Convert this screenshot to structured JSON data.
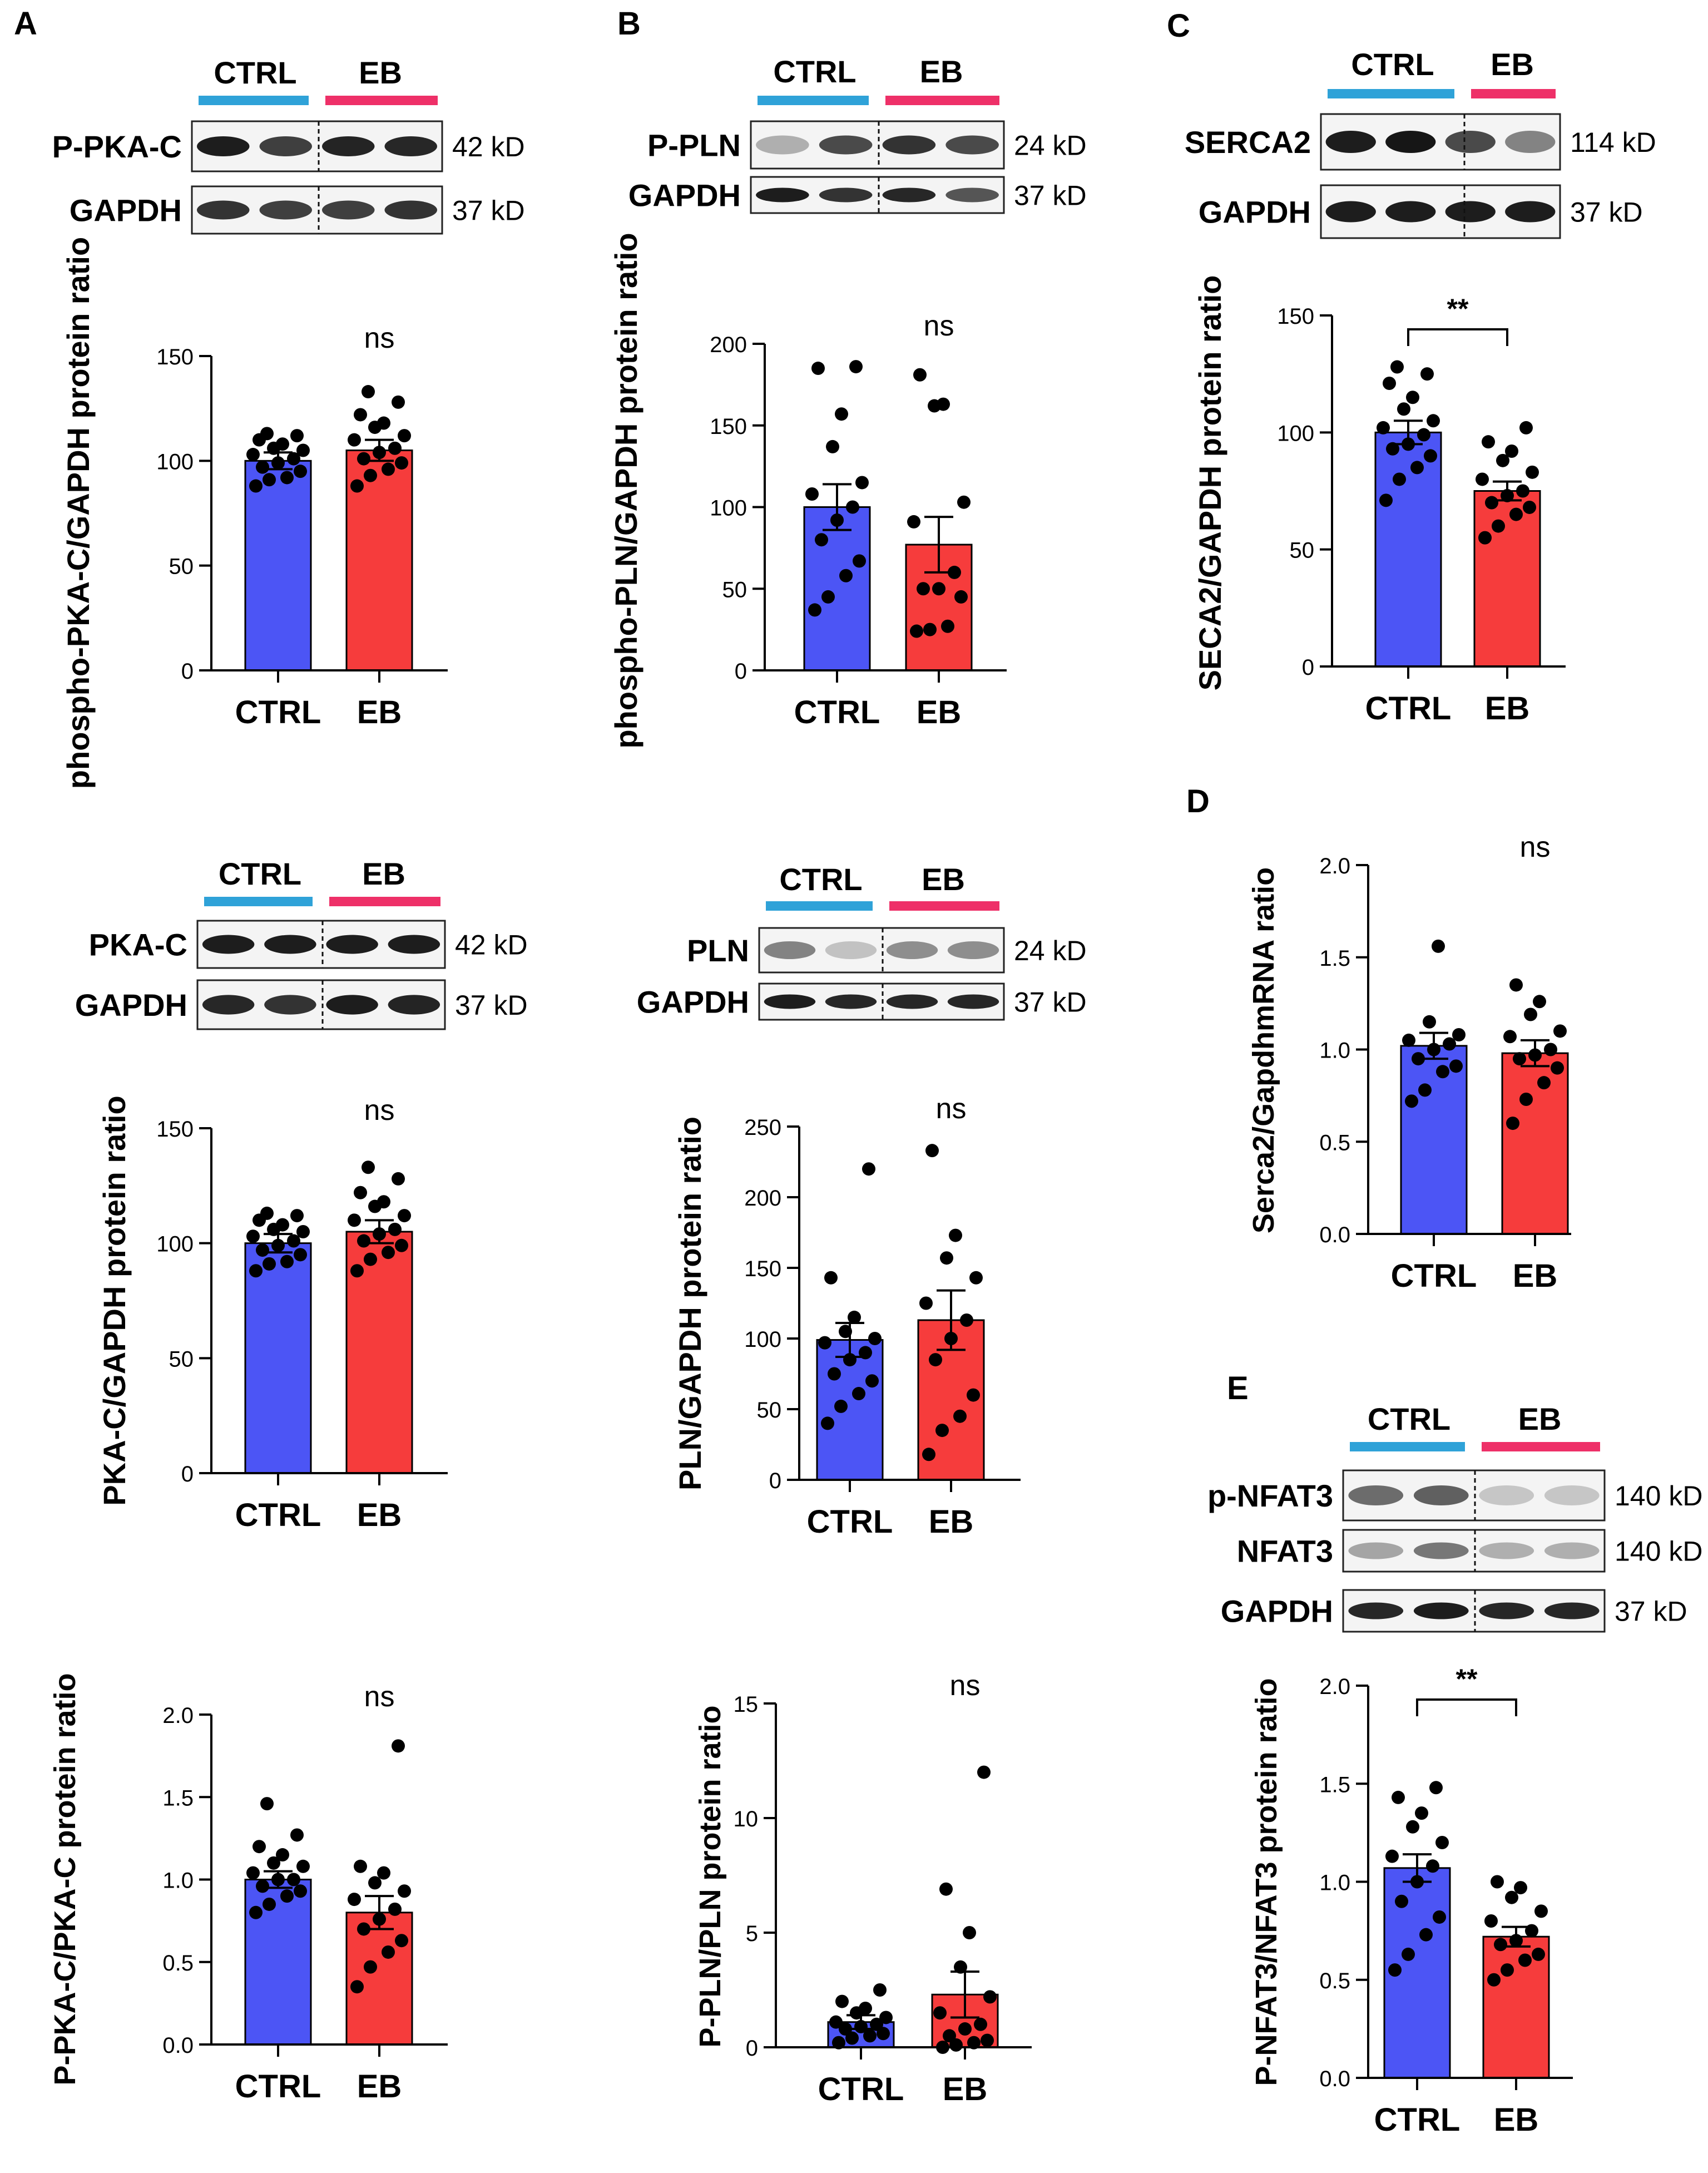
{
  "colors": {
    "ctrl_bar": "#4c55f5",
    "eb_bar": "#f63c3c",
    "ctrl_line": "#2fa2d8",
    "eb_line": "#ee3068",
    "dot": "#000000",
    "axis": "#000000"
  },
  "panel_labels": {
    "a": "A",
    "b": "B",
    "c": "C",
    "d": "D",
    "e": "E"
  },
  "group_labels": {
    "ctrl": "CTRL",
    "eb": "EB"
  },
  "blots": [
    {
      "id": "a1",
      "rows": [
        {
          "label": "P-PKA-C",
          "kd": "42 kD"
        },
        {
          "label": "GAPDH",
          "kd": "37 kD"
        }
      ]
    },
    {
      "id": "a2",
      "rows": [
        {
          "label": "PKA-C",
          "kd": "42 kD"
        },
        {
          "label": "GAPDH",
          "kd": "37 kD"
        }
      ]
    },
    {
      "id": "b1",
      "rows": [
        {
          "label": "P-PLN",
          "kd": "24 kD"
        },
        {
          "label": "GAPDH",
          "kd": "37 kD"
        }
      ]
    },
    {
      "id": "b2",
      "rows": [
        {
          "label": "PLN",
          "kd": "24 kD"
        },
        {
          "label": "GAPDH",
          "kd": "37 kD"
        }
      ]
    },
    {
      "id": "c1",
      "rows": [
        {
          "label": "SERCA2",
          "kd": "114 kD"
        },
        {
          "label": "GAPDH",
          "kd": "37 kD"
        }
      ]
    },
    {
      "id": "e1",
      "rows": [
        {
          "label": "p-NFAT3",
          "kd": "140 kD"
        },
        {
          "label": "NFAT3",
          "kd": "140 kD"
        },
        {
          "label": "GAPDH",
          "kd": "37 kD"
        }
      ]
    }
  ],
  "chart_data": [
    {
      "id": "a1",
      "type": "bar",
      "categories": [
        "CTRL",
        "EB"
      ],
      "values": [
        100,
        105
      ],
      "errors": [
        4,
        5
      ],
      "points": [
        [
          88,
          91,
          92,
          95,
          97,
          99,
          101,
          103,
          105,
          106,
          108,
          110,
          112,
          113
        ],
        [
          88,
          93,
          96,
          99,
          101,
          104,
          106,
          110,
          112,
          116,
          118,
          122,
          128,
          133
        ]
      ],
      "ylabel": "phospho-PKA-C/GAPDH protein ratio",
      "ylim": [
        0,
        150
      ],
      "ticks": [
        "0",
        "50",
        "100",
        "150"
      ],
      "annotation": "ns"
    },
    {
      "id": "a2",
      "type": "bar",
      "categories": [
        "CTRL",
        "EB"
      ],
      "values": [
        100,
        105
      ],
      "errors": [
        4,
        5
      ],
      "points": [
        [
          88,
          91,
          92,
          95,
          97,
          99,
          101,
          103,
          105,
          106,
          108,
          110,
          112,
          113
        ],
        [
          88,
          93,
          96,
          99,
          101,
          104,
          106,
          110,
          112,
          116,
          118,
          122,
          128,
          133
        ]
      ],
      "ylabel": "PKA-C/GAPDH protein ratio",
      "ylim": [
        0,
        150
      ],
      "ticks": [
        "0",
        "50",
        "100",
        "150"
      ],
      "annotation": "ns"
    },
    {
      "id": "a3",
      "type": "bar",
      "categories": [
        "CTRL",
        "EB"
      ],
      "values": [
        1.0,
        0.8
      ],
      "errors": [
        0.05,
        0.1
      ],
      "points": [
        [
          0.8,
          0.85,
          0.9,
          0.93,
          0.96,
          1.0,
          1.0,
          1.04,
          1.08,
          1.1,
          1.15,
          1.2,
          1.27,
          1.46
        ],
        [
          0.35,
          0.47,
          0.56,
          0.63,
          0.7,
          0.76,
          0.82,
          0.88,
          0.93,
          0.98,
          1.04,
          1.08,
          1.81
        ]
      ],
      "ylabel": "P-PKA-C/PKA-C protein ratio",
      "ylim": [
        0,
        2
      ],
      "ticks": [
        "0.0",
        "0.5",
        "1.0",
        "1.5",
        "2.0"
      ],
      "annotation": "ns"
    },
    {
      "id": "b1",
      "type": "bar",
      "categories": [
        "CTRL",
        "EB"
      ],
      "values": [
        100,
        77
      ],
      "errors": [
        14,
        17
      ],
      "points": [
        [
          37,
          45,
          58,
          67,
          80,
          92,
          100,
          108,
          115,
          137,
          157,
          185,
          186
        ],
        [
          24,
          25,
          27,
          45,
          50,
          50,
          60,
          91,
          103,
          162,
          163,
          181
        ]
      ],
      "ylabel": "phospho-PLN/GAPDH protein ratio",
      "ylim": [
        0,
        200
      ],
      "ticks": [
        "0",
        "50",
        "100",
        "150",
        "200"
      ],
      "annotation": "ns"
    },
    {
      "id": "b2",
      "type": "bar",
      "categories": [
        "CTRL",
        "EB"
      ],
      "values": [
        99,
        113
      ],
      "errors": [
        12,
        21
      ],
      "points": [
        [
          40,
          52,
          61,
          70,
          75,
          85,
          90,
          97,
          100,
          105,
          115,
          143,
          220
        ],
        [
          18,
          35,
          45,
          60,
          85,
          100,
          113,
          125,
          143,
          157,
          173,
          233
        ]
      ],
      "ylabel": "PLN/GAPDH protein ratio",
      "ylim": [
        0,
        250
      ],
      "ticks": [
        "0",
        "50",
        "100",
        "150",
        "200",
        "250"
      ],
      "annotation": "ns"
    },
    {
      "id": "b3",
      "type": "bar",
      "categories": [
        "CTRL",
        "EB"
      ],
      "values": [
        1.1,
        2.3
      ],
      "errors": [
        0.3,
        1.0
      ],
      "points": [
        [
          0.2,
          0.4,
          0.5,
          0.6,
          0.8,
          0.9,
          1.0,
          1.1,
          1.3,
          1.5,
          1.7,
          2.0,
          2.5
        ],
        [
          0.0,
          0.1,
          0.2,
          0.3,
          0.5,
          0.8,
          1.0,
          1.5,
          2.2,
          3.5,
          5.0,
          6.9,
          12.0
        ]
      ],
      "ylabel": "P-PLN/PLN protein ratio",
      "ylim": [
        0,
        15
      ],
      "ticks": [
        "0",
        "5",
        "10",
        "15"
      ],
      "annotation": "ns"
    },
    {
      "id": "c1",
      "type": "bar",
      "categories": [
        "CTRL",
        "EB"
      ],
      "values": [
        100,
        75
      ],
      "errors": [
        5,
        4
      ],
      "points": [
        [
          71,
          80,
          85,
          90,
          93,
          95,
          99,
          102,
          105,
          110,
          115,
          121,
          125,
          128
        ],
        [
          55,
          60,
          65,
          68,
          70,
          73,
          75,
          80,
          83,
          88,
          92,
          96,
          102
        ]
      ],
      "ylabel": "SECA2/GAPDH protein ratio",
      "ylim": [
        0,
        150
      ],
      "ticks": [
        "0",
        "50",
        "100",
        "150"
      ],
      "annotation": "**"
    },
    {
      "id": "d1",
      "type": "bar",
      "categories": [
        "CTRL",
        "EB"
      ],
      "values": [
        1.02,
        0.98
      ],
      "errors": [
        0.07,
        0.07
      ],
      "points": [
        [
          0.72,
          0.78,
          0.88,
          0.91,
          0.95,
          1.0,
          1.03,
          1.05,
          1.08,
          1.15,
          1.56
        ],
        [
          0.6,
          0.73,
          0.82,
          0.9,
          0.95,
          0.97,
          1.0,
          1.07,
          1.1,
          1.19,
          1.26,
          1.35
        ]
      ],
      "ylabel": "Serca2/GapdhmRNA ratio",
      "ylim": [
        0,
        2
      ],
      "ticks": [
        "0.0",
        "0.5",
        "1.0",
        "1.5",
        "2.0"
      ],
      "annotation": "ns"
    },
    {
      "id": "e1",
      "type": "bar",
      "categories": [
        "CTRL",
        "EB"
      ],
      "values": [
        1.07,
        0.72
      ],
      "errors": [
        0.07,
        0.05
      ],
      "points": [
        [
          0.55,
          0.63,
          0.73,
          0.82,
          0.9,
          1.0,
          1.08,
          1.13,
          1.2,
          1.28,
          1.35,
          1.43,
          1.48
        ],
        [
          0.5,
          0.55,
          0.6,
          0.63,
          0.68,
          0.7,
          0.75,
          0.8,
          0.85,
          0.92,
          0.97,
          1.0
        ]
      ],
      "ylabel": "P-NFAT3/NFAT3 protein ratio",
      "ylim": [
        0,
        2
      ],
      "ticks": [
        "0.0",
        "0.5",
        "1.0",
        "1.5",
        "2.0"
      ],
      "annotation": "**"
    }
  ]
}
